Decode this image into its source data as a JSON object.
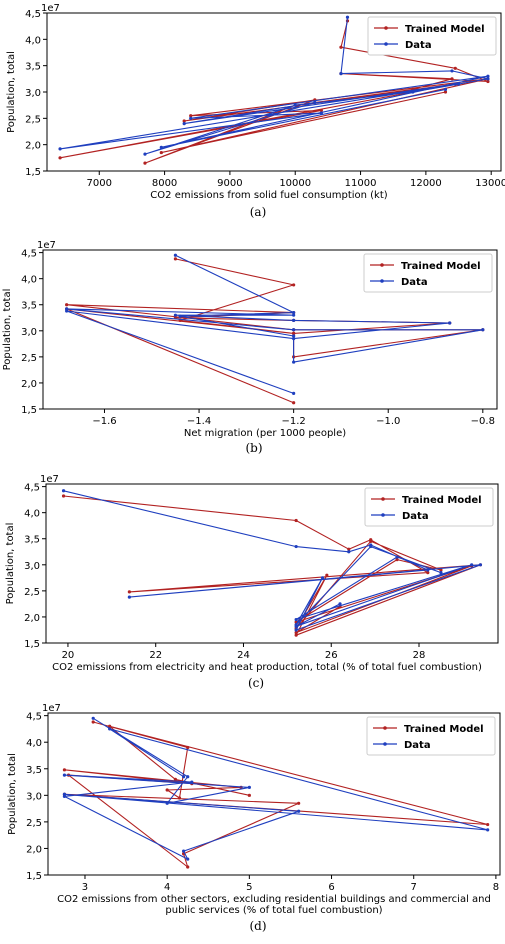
{
  "chart_data": [
    {
      "type": "line",
      "caption": "(a)",
      "xlabel": "CO2 emissions from solid fuel consumption (kt)",
      "ylabel": "Population, total",
      "y_offset": "1e7",
      "xlim": [
        6200,
        13150
      ],
      "ylim": [
        1.5,
        4.5
      ],
      "xticks": [
        7000,
        8000,
        9000,
        10000,
        11000,
        12000,
        13000
      ],
      "yticks": [
        1.5,
        2.0,
        2.5,
        3.0,
        3.5,
        4.0,
        4.5
      ],
      "grid": false,
      "legend_position": "top-right",
      "series": [
        {
          "name": "Trained Model",
          "color": "#b22222",
          "x": [
            10800,
            10700,
            12450,
            12950,
            10700,
            12400,
            11800,
            10000,
            7700,
            10300,
            8300,
            12450,
            6400,
            10400,
            8400,
            12950,
            7950,
            12300
          ],
          "y": [
            4.35,
            3.85,
            3.45,
            3.2,
            3.35,
            3.25,
            3.05,
            2.75,
            1.65,
            2.85,
            2.45,
            3.15,
            1.75,
            2.65,
            2.55,
            3.25,
            1.85,
            3.0
          ]
        },
        {
          "name": "Data",
          "color": "#1f3fbf",
          "x": [
            10800,
            10700,
            12400,
            12950,
            12500,
            11800,
            10000,
            7700,
            10300,
            8300,
            12450,
            6400,
            10400,
            8400,
            12950,
            7950,
            12300
          ],
          "y": [
            4.42,
            3.35,
            3.4,
            3.25,
            3.15,
            3.0,
            2.75,
            1.82,
            2.8,
            2.4,
            3.15,
            1.92,
            2.6,
            2.5,
            3.3,
            1.95,
            3.05
          ]
        }
      ]
    },
    {
      "type": "line",
      "caption": "(b)",
      "xlabel": "Net migration (per 1000 people)",
      "ylabel": "Population, total",
      "y_offset": "1e7",
      "xlim": [
        -1.73,
        -0.77
      ],
      "ylim": [
        1.5,
        4.55
      ],
      "xticks": [
        -1.6,
        -1.4,
        -1.2,
        -1.0,
        -0.8
      ],
      "xticklabels": [
        "−1.6",
        "−1.4",
        "−1.2",
        "−1.0",
        "−0.8"
      ],
      "yticks": [
        1.5,
        2.0,
        2.5,
        3.0,
        3.5,
        4.0,
        4.5
      ],
      "grid": false,
      "legend_position": "top-right",
      "series": [
        {
          "name": "Trained Model",
          "color": "#b22222",
          "x": [
            -1.45,
            -1.2,
            -1.44,
            -1.2,
            -1.2,
            -0.8,
            -1.2,
            -1.68,
            -1.2,
            -1.45,
            -1.2,
            -0.87,
            -1.2,
            -1.68,
            -1.2
          ],
          "y": [
            4.38,
            3.88,
            3.2,
            2.95,
            2.5,
            3.02,
            3.02,
            3.5,
            3.35,
            3.25,
            3.2,
            3.15,
            2.95,
            3.42,
            1.62
          ]
        },
        {
          "name": "Data",
          "color": "#1f3fbf",
          "x": [
            -1.45,
            -1.2,
            -1.44,
            -1.2,
            -1.2,
            -0.8,
            -1.2,
            -1.68,
            -1.2,
            -1.45,
            -1.2,
            -0.87,
            -1.2,
            -1.68,
            -1.2
          ],
          "y": [
            4.45,
            3.35,
            3.28,
            2.9,
            2.4,
            3.02,
            3.02,
            3.42,
            3.3,
            3.3,
            3.2,
            3.15,
            2.85,
            3.38,
            1.8
          ]
        }
      ]
    },
    {
      "type": "line",
      "caption": "(c)",
      "xlabel": "CO2 emissions from electricity and heat production, total (% of total fuel combustion)",
      "ylabel": "Population, total",
      "y_offset": "1e7",
      "xlim": [
        19.5,
        29.8
      ],
      "ylim": [
        1.5,
        4.55
      ],
      "xticks": [
        20,
        22,
        24,
        26,
        28
      ],
      "yticks": [
        1.5,
        2.0,
        2.5,
        3.0,
        3.5,
        4.0,
        4.5
      ],
      "grid": false,
      "legend_position": "top-right",
      "series": [
        {
          "name": "Trained Model",
          "color": "#b22222",
          "x": [
            19.9,
            25.2,
            26.4,
            26.9,
            28.2,
            21.4,
            29.4,
            25.2,
            25.9,
            25.2,
            26.9,
            28.5,
            27.5,
            25.2,
            29.2,
            25.2,
            26.2
          ],
          "y": [
            4.32,
            3.85,
            3.3,
            3.48,
            2.85,
            2.48,
            3.0,
            1.65,
            2.8,
            1.78,
            3.45,
            2.9,
            3.1,
            1.9,
            2.98,
            1.7,
            2.2
          ]
        },
        {
          "name": "Data",
          "color": "#1f3fbf",
          "x": [
            19.9,
            25.2,
            26.4,
            26.9,
            28.2,
            21.4,
            29.4,
            25.2,
            25.8,
            25.2,
            26.9,
            28.5,
            27.5,
            25.2,
            29.2,
            25.2,
            26.2
          ],
          "y": [
            4.42,
            3.35,
            3.25,
            3.38,
            2.9,
            2.38,
            3.0,
            1.75,
            2.75,
            1.85,
            3.35,
            2.85,
            3.15,
            1.95,
            3.0,
            1.82,
            2.25
          ]
        }
      ]
    },
    {
      "type": "line",
      "caption": "(d)",
      "xlabel": "CO2 emissions from other sectors, excluding residential buildings and commercial and",
      "xlabel_line2": "public services (% of total fuel combustion)",
      "ylabel": "Population, total",
      "y_offset": "1e7",
      "xlim": [
        2.55,
        8.05
      ],
      "ylim": [
        1.5,
        4.55
      ],
      "xticks": [
        3,
        4,
        5,
        6,
        7,
        8
      ],
      "yticks": [
        1.5,
        2.0,
        2.5,
        3.0,
        3.5,
        4.0,
        4.5
      ],
      "grid": false,
      "legend_position": "top-right",
      "series": [
        {
          "name": "Trained Model",
          "color": "#b22222",
          "x": [
            3.1,
            4.25,
            4.15,
            4.0,
            4.9,
            2.75,
            4.3,
            2.8,
            4.25,
            4.2,
            5.6,
            2.75,
            7.9,
            3.3,
            4.1,
            5.0
          ],
          "y": [
            4.38,
            3.9,
            2.95,
            3.1,
            3.15,
            3.48,
            3.22,
            3.38,
            1.65,
            1.9,
            2.85,
            3.02,
            2.45,
            4.3,
            3.3,
            3.0
          ]
        },
        {
          "name": "Data",
          "color": "#1f3fbf",
          "x": [
            3.1,
            4.25,
            4.0,
            5.0,
            2.75,
            4.3,
            2.75,
            4.25,
            4.2,
            5.6,
            2.75,
            7.9,
            3.3,
            4.2
          ],
          "y": [
            4.45,
            3.35,
            2.85,
            3.15,
            3.38,
            3.25,
            2.98,
            1.8,
            1.95,
            2.7,
            3.02,
            2.35,
            4.25,
            3.35
          ]
        }
      ]
    }
  ]
}
